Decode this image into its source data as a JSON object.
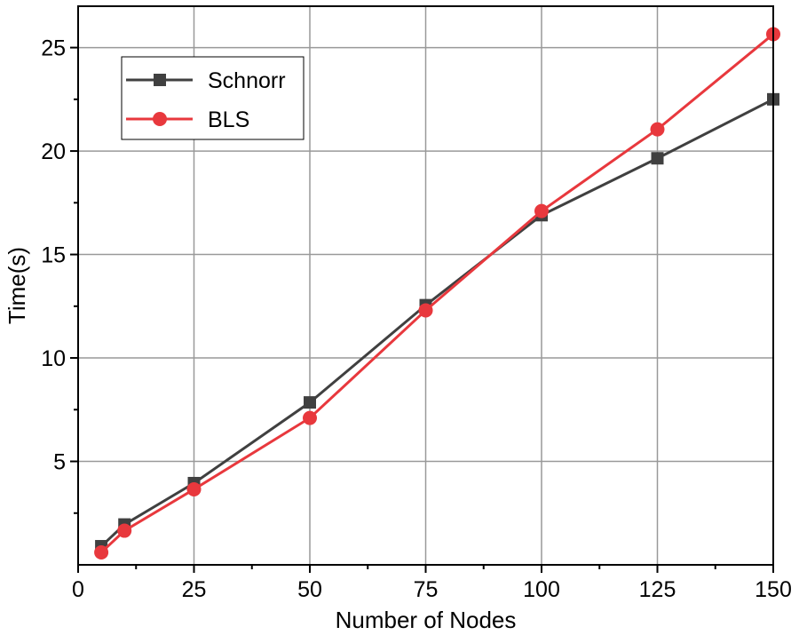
{
  "chart_data": {
    "type": "line",
    "xlabel": "Number of Nodes",
    "ylabel": "Time(s)",
    "xlim": [
      0,
      150
    ],
    "ylim": [
      0,
      27
    ],
    "xticks": [
      0,
      25,
      50,
      75,
      100,
      125,
      150
    ],
    "yticks": [
      5,
      10,
      15,
      20,
      25
    ],
    "grid": true,
    "legend_position": "top-left",
    "x": [
      5,
      10,
      25,
      50,
      75,
      100,
      125,
      150
    ],
    "series": [
      {
        "name": "Schnorr",
        "color": "#404040",
        "marker": "square",
        "values": [
          0.9,
          1.95,
          3.95,
          7.85,
          12.55,
          16.9,
          19.65,
          22.5
        ]
      },
      {
        "name": "BLS",
        "color": "#e8383d",
        "marker": "circle",
        "values": [
          0.6,
          1.65,
          3.65,
          7.1,
          12.3,
          17.1,
          21.05,
          25.65
        ]
      }
    ]
  }
}
